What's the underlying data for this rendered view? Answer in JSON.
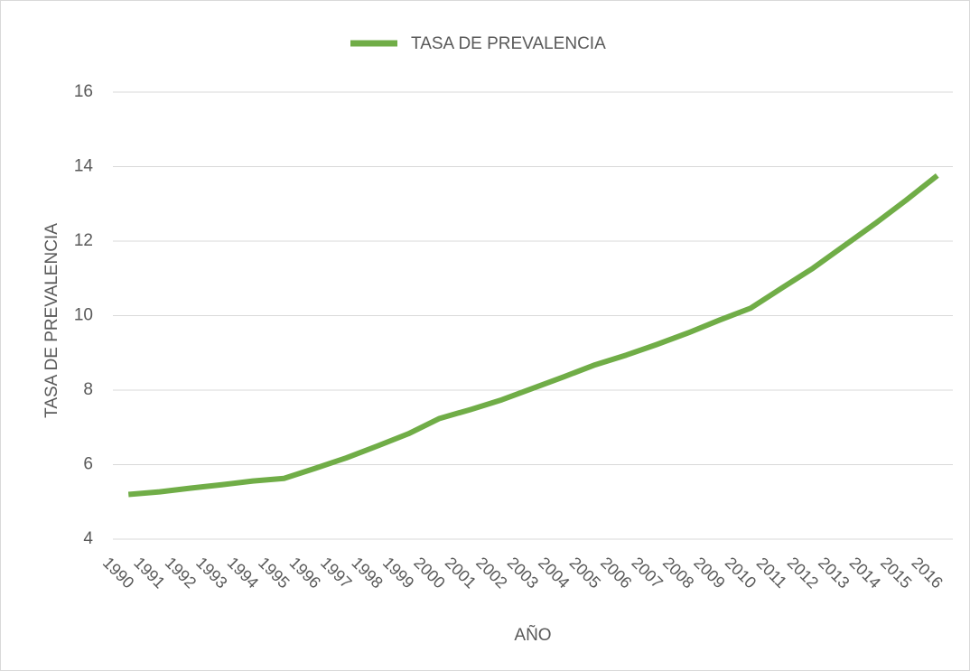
{
  "chart_data": {
    "type": "line",
    "x_label": "AÑO",
    "y_label": "TASA DE PREVALENCIA",
    "categories": [
      "1990",
      "1991",
      "1992",
      "1993",
      "1994",
      "1995",
      "1996",
      "1997",
      "1998",
      "1999",
      "2000",
      "2001",
      "2002",
      "2003",
      "2004",
      "2005",
      "2006",
      "2007",
      "2008",
      "2009",
      "2010",
      "2011",
      "2012",
      "2013",
      "2014",
      "2015",
      "2016"
    ],
    "series": [
      {
        "name": "TASA DE PREVALENCIA",
        "color": "#70ad47",
        "values": [
          5.2,
          5.27,
          5.37,
          5.46,
          5.56,
          5.63,
          5.9,
          6.18,
          6.5,
          6.83,
          7.24,
          7.48,
          7.74,
          8.05,
          8.36,
          8.68,
          8.94,
          9.23,
          9.54,
          9.88,
          10.2,
          10.74,
          11.27,
          11.87,
          12.47,
          13.1,
          13.76
        ]
      }
    ],
    "ylim": [
      4,
      16
    ],
    "yticks": [
      4,
      6,
      8,
      10,
      12,
      14,
      16
    ],
    "grid": true,
    "legend": "top"
  }
}
